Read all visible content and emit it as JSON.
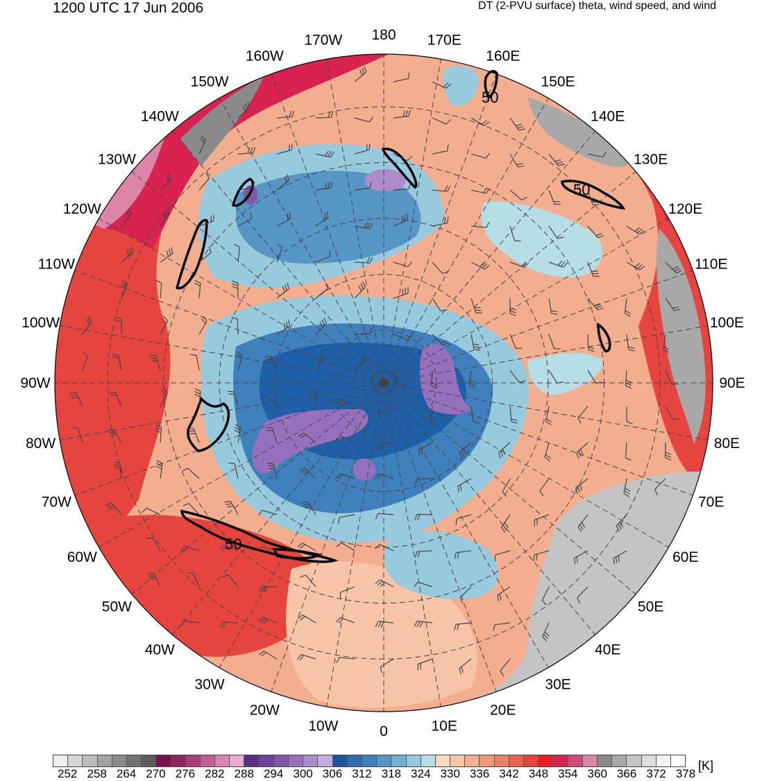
{
  "header": {
    "datetime": "1200 UTC 17 Jun 2006",
    "description": "DT (2-PVU surface) theta, wind speed, and wind"
  },
  "map": {
    "projection": "north-polar-stereographic",
    "longitude_labels": [
      "180",
      "170E",
      "160E",
      "150E",
      "140E",
      "130E",
      "120E",
      "110E",
      "100E",
      "90E",
      "80E",
      "70E",
      "60E",
      "50E",
      "40E",
      "30E",
      "20E",
      "10E",
      "0",
      "10W",
      "20W",
      "30W",
      "40W",
      "50W",
      "60W",
      "70W",
      "80W",
      "90W",
      "100W",
      "110W",
      "120W",
      "130W",
      "140W",
      "150W",
      "160W",
      "170W"
    ],
    "wind_speed_contour_label": "50",
    "colors": {
      "cold_core": "#1f5fa8",
      "cool": "#72b2d0",
      "warm": "#f0a888",
      "hot": "#e83a36",
      "stratospheric": "#a8a8a8",
      "lowest": "#9a68b8"
    }
  },
  "colorbar": {
    "tick_labels": [
      "252",
      "258",
      "264",
      "270",
      "276",
      "282",
      "288",
      "294",
      "300",
      "306",
      "312",
      "318",
      "324",
      "330",
      "336",
      "342",
      "348",
      "354",
      "360",
      "366",
      "372",
      "378"
    ],
    "units": "[K]",
    "colors": [
      "#f0f0f0",
      "#d6d6d6",
      "#bdbdbd",
      "#a3a3a3",
      "#8a8a8a",
      "#727272",
      "#5c5c5c",
      "#7b1050",
      "#95215f",
      "#ad3c7a",
      "#c45c98",
      "#d882b6",
      "#eaaad2",
      "#5e2d86",
      "#6e419a",
      "#8058aa",
      "#9670bc",
      "#ad8ccb",
      "#c4acdb",
      "#1b56a0",
      "#2d6cb0",
      "#3f80bc",
      "#5596c6",
      "#70afd2",
      "#98cade",
      "#b7dde6",
      "#f8dcc2",
      "#f6c4a6",
      "#f2ae8e",
      "#ee9878",
      "#ea8066",
      "#e86252",
      "#e6443e",
      "#ec1c24",
      "#d82250",
      "#ce4a7c",
      "#dc85a8",
      "#8a8a8a",
      "#a8a8a8",
      "#c4c4c4",
      "#dedede",
      "#f2f2f2",
      "#ffffff"
    ]
  }
}
